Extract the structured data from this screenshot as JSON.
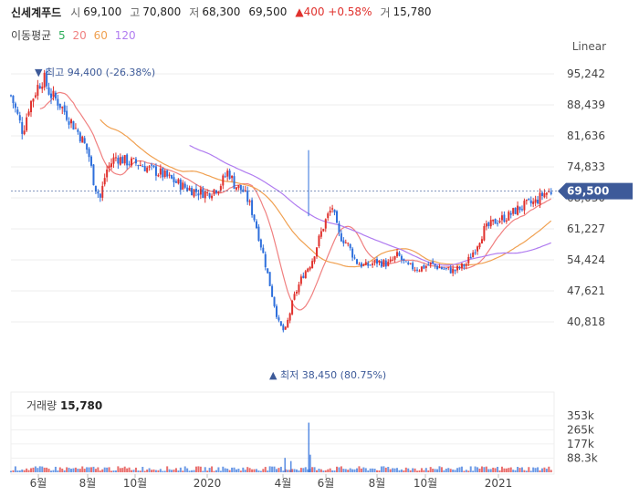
{
  "header": {
    "name": "신세계푸드",
    "open_label": "시",
    "open": "69,100",
    "high_label": "고",
    "high": "70,800",
    "low_label": "저",
    "low": "68,300",
    "close": "69,500",
    "change": "▲400 +0.58%",
    "volume_label": "거",
    "volume": "15,780"
  },
  "ma_legend": {
    "title": "이동평균",
    "periods": [
      "5",
      "20",
      "60",
      "120"
    ],
    "colors": [
      "#2dae5a",
      "#f08080",
      "#f0a050",
      "#b07cf0"
    ]
  },
  "scale_mode": "Linear",
  "annotations": {
    "max_label": "최고 94,400 (-26.38%)",
    "min_label": "최저 38,450 (80.75%)",
    "current_price": "69,500"
  },
  "volume_title": {
    "label": "거래량",
    "value": "15,780"
  },
  "colors": {
    "up": "#e0312d",
    "down": "#2e6fdc",
    "accent": "#3d5a99"
  },
  "chart_data": {
    "type": "candlestick",
    "y_ticks": [
      "95,242",
      "88,439",
      "81,636",
      "74,833",
      "68,030",
      "61,227",
      "54,424",
      "47,621",
      "40,818"
    ],
    "y_tick_values": [
      95242,
      88439,
      81636,
      74833,
      68030,
      61227,
      54424,
      47621,
      40818
    ],
    "x_ticks": [
      "6월",
      "8월",
      "10월",
      "2020",
      "4월",
      "6월",
      "8월",
      "10월",
      "2021"
    ],
    "volume_ticks": [
      "353k",
      "265k",
      "177k",
      "88.3k"
    ],
    "volume_tick_values": [
      353000,
      265000,
      177000,
      88300
    ],
    "price_path": [
      [
        0,
        90500
      ],
      [
        8,
        82500
      ],
      [
        12,
        88000
      ],
      [
        18,
        92500
      ],
      [
        22,
        94400
      ],
      [
        26,
        91000
      ],
      [
        32,
        89000
      ],
      [
        40,
        85000
      ],
      [
        46,
        82000
      ],
      [
        52,
        78000
      ],
      [
        56,
        71000
      ],
      [
        60,
        68000
      ],
      [
        64,
        74000
      ],
      [
        70,
        77000
      ],
      [
        78,
        76000
      ],
      [
        86,
        75500
      ],
      [
        92,
        74500
      ],
      [
        100,
        73500
      ],
      [
        108,
        72000
      ],
      [
        116,
        70500
      ],
      [
        124,
        69500
      ],
      [
        132,
        69000
      ],
      [
        140,
        70500
      ],
      [
        146,
        74000
      ],
      [
        150,
        71000
      ],
      [
        156,
        69500
      ],
      [
        160,
        67000
      ],
      [
        164,
        63000
      ],
      [
        170,
        55000
      ],
      [
        176,
        46000
      ],
      [
        180,
        40500
      ],
      [
        184,
        38450
      ],
      [
        190,
        46000
      ],
      [
        196,
        51000
      ],
      [
        202,
        54000
      ],
      [
        208,
        60000
      ],
      [
        212,
        63500
      ],
      [
        216,
        66000
      ],
      [
        220,
        60000
      ],
      [
        226,
        58000
      ],
      [
        232,
        54000
      ],
      [
        238,
        53000
      ],
      [
        246,
        54000
      ],
      [
        254,
        53500
      ],
      [
        260,
        55500
      ],
      [
        266,
        53000
      ],
      [
        274,
        52500
      ],
      [
        282,
        53500
      ],
      [
        290,
        52500
      ],
      [
        298,
        52000
      ],
      [
        306,
        53500
      ],
      [
        312,
        57000
      ],
      [
        318,
        61000
      ],
      [
        326,
        63000
      ],
      [
        334,
        64000
      ],
      [
        340,
        65500
      ],
      [
        346,
        66500
      ],
      [
        352,
        67000
      ],
      [
        358,
        69000
      ],
      [
        364,
        69500
      ]
    ],
    "max_point": {
      "t": 22,
      "value": 94400
    },
    "min_point": {
      "t": 184,
      "value": 38450
    },
    "volume_spikes": [
      {
        "t": 200,
        "value": 310000
      },
      {
        "t": 201,
        "value": 110000
      },
      {
        "t": 184,
        "value": 90000
      },
      {
        "t": 188,
        "value": 70000
      }
    ]
  }
}
